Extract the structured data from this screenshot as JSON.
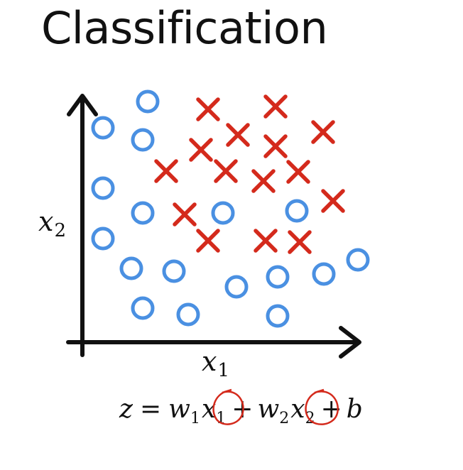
{
  "title": "Classification",
  "axes": {
    "x_label": "x",
    "x_sub": "1",
    "y_label": "x",
    "y_sub": "2"
  },
  "equation": {
    "lhs": "z",
    "eq": "=",
    "w1": "w",
    "w1_sub": "1",
    "x1": "x",
    "x1_sub": "1",
    "plus1": "+",
    "w2": "w",
    "w2_sub": "2",
    "x2": "x",
    "x2_sub": "2",
    "plus2": "+",
    "b": "b"
  },
  "colors": {
    "circle": "#4a90e2",
    "cross": "#d42a1c",
    "axis": "#111111",
    "annotation": "#d42a1c"
  },
  "points": {
    "circles": [
      [
        208,
        143
      ],
      [
        145,
        180
      ],
      [
        201,
        197
      ],
      [
        145,
        265
      ],
      [
        201,
        300
      ],
      [
        145,
        336
      ],
      [
        314,
        300
      ],
      [
        418,
        297
      ],
      [
        185,
        378
      ],
      [
        245,
        382
      ],
      [
        333,
        404
      ],
      [
        391,
        390
      ],
      [
        456,
        386
      ],
      [
        504,
        366
      ],
      [
        201,
        434
      ],
      [
        265,
        443
      ],
      [
        391,
        445
      ]
    ],
    "crosses": [
      [
        293,
        154
      ],
      [
        388,
        150
      ],
      [
        335,
        190
      ],
      [
        455,
        186
      ],
      [
        283,
        211
      ],
      [
        388,
        206
      ],
      [
        234,
        241
      ],
      [
        318,
        241
      ],
      [
        420,
        242
      ],
      [
        371,
        255
      ],
      [
        469,
        283
      ],
      [
        260,
        302
      ],
      [
        293,
        339
      ],
      [
        374,
        339
      ],
      [
        422,
        341
      ]
    ]
  }
}
